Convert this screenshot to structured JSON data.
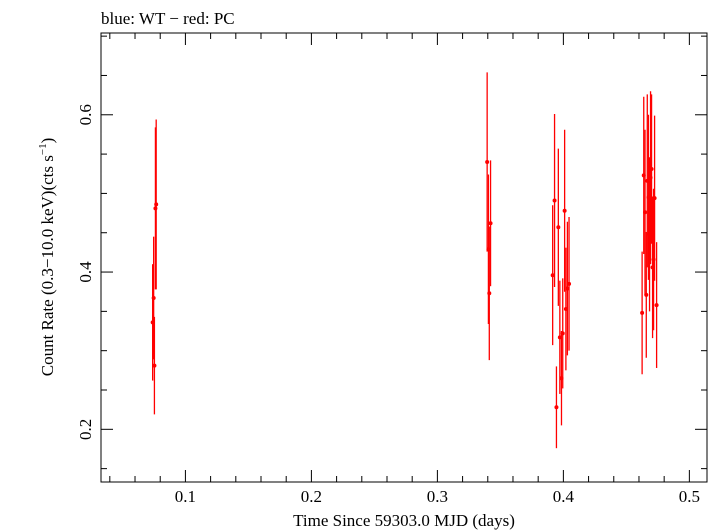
{
  "chart_data": {
    "type": "scatter",
    "title": "blue: WT − red: PC",
    "xlabel": "Time Since 59303.0 MJD (days)",
    "ylabel_main": "Count Rate (0.3−10.0 keV)(cts s",
    "ylabel_sup": "−1",
    "ylabel_end": ")",
    "xlim": [
      0.033,
      0.514
    ],
    "ylim": [
      0.133,
      0.704
    ],
    "x_ticks": [
      0.1,
      0.2,
      0.3,
      0.4,
      0.5
    ],
    "x_tick_labels": [
      "0.1",
      "0.2",
      "0.3",
      "0.4",
      "0.5"
    ],
    "y_ticks": [
      0.2,
      0.4,
      0.6
    ],
    "y_tick_labels": [
      "0.2",
      "0.4",
      "0.6"
    ],
    "grid": false,
    "series": [
      {
        "color": "#ff0000",
        "points": [
          {
            "x": 0.074,
            "y": 0.336,
            "err": 0.074
          },
          {
            "x": 0.0748,
            "y": 0.367,
            "err": 0.078
          },
          {
            "x": 0.0754,
            "y": 0.281,
            "err": 0.062
          },
          {
            "x": 0.0762,
            "y": 0.481,
            "err": 0.103
          },
          {
            "x": 0.0768,
            "y": 0.486,
            "err": 0.108
          },
          {
            "x": 0.3395,
            "y": 0.54,
            "err": 0.114
          },
          {
            "x": 0.3405,
            "y": 0.429,
            "err": 0.095
          },
          {
            "x": 0.3412,
            "y": 0.373,
            "err": 0.085
          },
          {
            "x": 0.3422,
            "y": 0.462,
            "err": 0.08
          },
          {
            "x": 0.3915,
            "y": 0.396,
            "err": 0.089
          },
          {
            "x": 0.393,
            "y": 0.491,
            "err": 0.11
          },
          {
            "x": 0.3945,
            "y": 0.228,
            "err": 0.052
          },
          {
            "x": 0.396,
            "y": 0.457,
            "err": 0.1
          },
          {
            "x": 0.3972,
            "y": 0.317,
            "err": 0.072
          },
          {
            "x": 0.3985,
            "y": 0.265,
            "err": 0.06
          },
          {
            "x": 0.3995,
            "y": 0.322,
            "err": 0.07
          },
          {
            "x": 0.401,
            "y": 0.478,
            "err": 0.103
          },
          {
            "x": 0.402,
            "y": 0.353,
            "err": 0.078
          },
          {
            "x": 0.4032,
            "y": 0.379,
            "err": 0.085
          },
          {
            "x": 0.4045,
            "y": 0.385,
            "err": 0.085
          },
          {
            "x": 0.4625,
            "y": 0.348,
            "err": 0.078
          },
          {
            "x": 0.4638,
            "y": 0.523,
            "err": 0.1
          },
          {
            "x": 0.4648,
            "y": 0.476,
            "err": 0.105
          },
          {
            "x": 0.4658,
            "y": 0.371,
            "err": 0.08
          },
          {
            "x": 0.4666,
            "y": 0.516,
            "err": 0.11
          },
          {
            "x": 0.4675,
            "y": 0.495,
            "err": 0.105
          },
          {
            "x": 0.4684,
            "y": 0.448,
            "err": 0.098
          },
          {
            "x": 0.4692,
            "y": 0.52,
            "err": 0.11
          },
          {
            "x": 0.47,
            "y": 0.531,
            "err": 0.095
          },
          {
            "x": 0.4708,
            "y": 0.406,
            "err": 0.09
          },
          {
            "x": 0.4716,
            "y": 0.416,
            "err": 0.09
          },
          {
            "x": 0.4724,
            "y": 0.494,
            "err": 0.105
          },
          {
            "x": 0.474,
            "y": 0.358,
            "err": 0.08
          }
        ]
      }
    ]
  }
}
